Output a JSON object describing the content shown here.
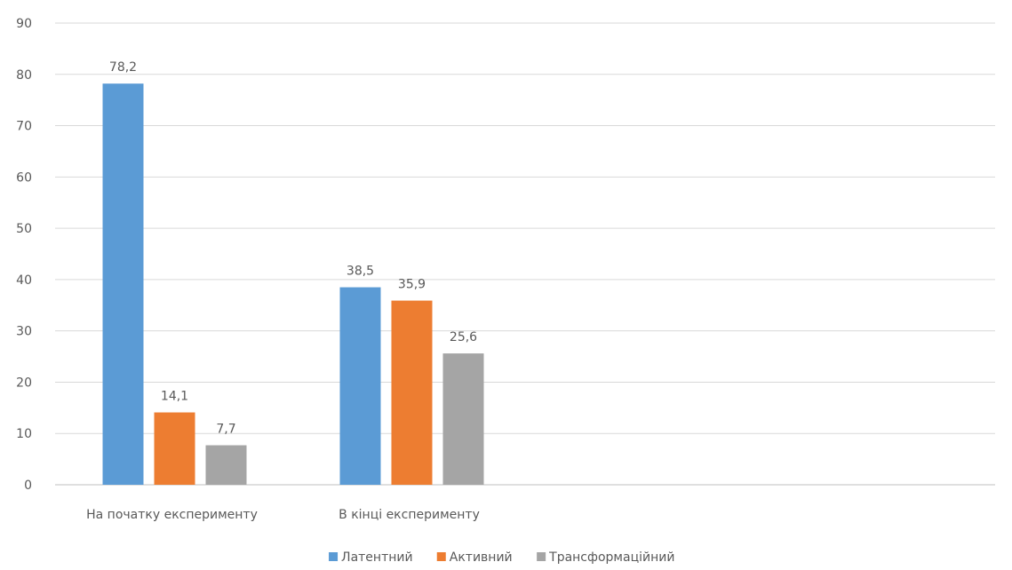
{
  "chart_data": {
    "type": "bar",
    "categories": [
      "На початку експерименту",
      "В кінці експерименту"
    ],
    "series": [
      {
        "name": "Латентний",
        "values": [
          78.2,
          38.5
        ],
        "labels": [
          "78,2",
          "38,5"
        ],
        "color": "#5b9bd5"
      },
      {
        "name": "Активний",
        "values": [
          14.1,
          35.9
        ],
        "labels": [
          "14,1",
          "35,9"
        ],
        "color": "#ed7d31"
      },
      {
        "name": "Трансформаційний",
        "values": [
          7.7,
          25.6
        ],
        "labels": [
          "7,7",
          "25,6"
        ],
        "color": "#a5a5a5"
      }
    ],
    "ylim": [
      0,
      90
    ],
    "yticks": [
      0,
      10,
      20,
      30,
      40,
      50,
      60,
      70,
      80,
      90
    ],
    "grid": true,
    "legend_position": "bottom-center",
    "title": "",
    "xlabel": "",
    "ylabel": ""
  }
}
